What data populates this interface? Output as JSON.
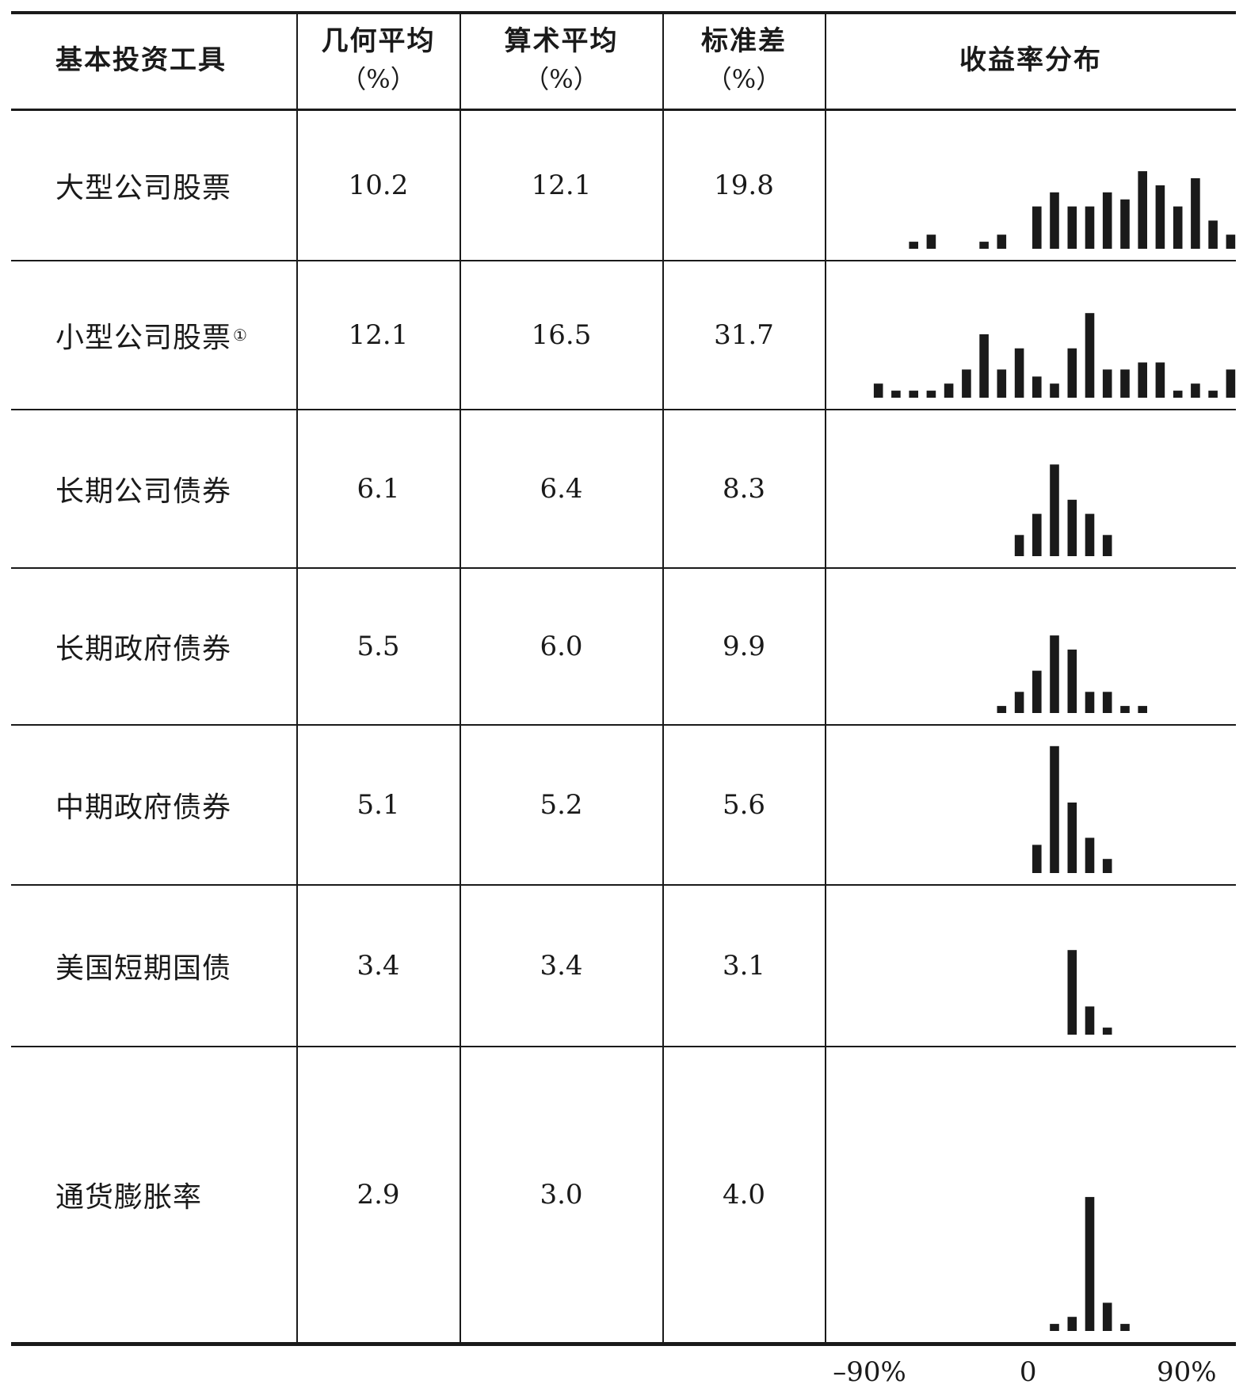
{
  "headers": {
    "instrument": "基本投资工具",
    "geo": "几何平均",
    "arith": "算术平均",
    "std": "标准差",
    "unit": "（%）",
    "dist": "收益率分布"
  },
  "rows": [
    {
      "name": "大型公司股票",
      "note": "",
      "geo": "10.2",
      "arith": "12.1",
      "std": "19.8"
    },
    {
      "name": "小型公司股票",
      "note": "①",
      "geo": "12.1",
      "arith": "16.5",
      "std": "31.7"
    },
    {
      "name": "长期公司债券",
      "note": "",
      "geo": "6.1",
      "arith": "6.4",
      "std": "8.3"
    },
    {
      "name": "长期政府债券",
      "note": "",
      "geo": "5.5",
      "arith": "6.0",
      "std": "9.9"
    },
    {
      "name": "中期政府债券",
      "note": "",
      "geo": "5.1",
      "arith": "5.2",
      "std": "5.6"
    },
    {
      "name": "美国短期国债",
      "note": "",
      "geo": "3.4",
      "arith": "3.4",
      "std": "3.1"
    },
    {
      "name": "通货膨胀率",
      "note": "",
      "geo": "2.9",
      "arith": "3.0",
      "std": "4.0"
    }
  ],
  "chart_data": {
    "type": "bar",
    "title": "收益率分布",
    "x": [
      -85,
      -75,
      -65,
      -55,
      -45,
      -35,
      -25,
      -15,
      -5,
      5,
      15,
      25,
      35,
      45,
      55,
      65,
      75,
      85,
      95,
      105,
      115
    ],
    "xlabel": "",
    "ylabel": "",
    "xlim": [
      -115,
      118
    ],
    "x_tick_labels": [
      "–90%",
      "0",
      "90%"
    ],
    "x_ticks": [
      -90,
      0,
      90
    ],
    "series": [
      {
        "name": "大型公司股票",
        "values": [
          0,
          0,
          1,
          2,
          0,
          0,
          1,
          2,
          0,
          6,
          8,
          6,
          6,
          8,
          7,
          11,
          9,
          6,
          10,
          4,
          2
        ]
      },
      {
        "name": "小型公司股票",
        "values": [
          2,
          1,
          1,
          1,
          2,
          4,
          9,
          4,
          7,
          3,
          2,
          7,
          12,
          4,
          4,
          5,
          5,
          1,
          2,
          1,
          4
        ]
      },
      {
        "name": "长期公司债券",
        "values": [
          0,
          0,
          0,
          0,
          0,
          0,
          0,
          0,
          3,
          6,
          13,
          8,
          6,
          3,
          0,
          0,
          0,
          0,
          0,
          0,
          0
        ]
      },
      {
        "name": "长期政府债券",
        "values": [
          0,
          0,
          0,
          0,
          0,
          0,
          0,
          1,
          3,
          6,
          11,
          9,
          3,
          3,
          1,
          1,
          0,
          0,
          0,
          0,
          0
        ]
      },
      {
        "name": "中期政府债券",
        "values": [
          0,
          0,
          0,
          0,
          0,
          0,
          0,
          0,
          0,
          4,
          18,
          10,
          5,
          2,
          0,
          0,
          0,
          0,
          0,
          0,
          0
        ]
      },
      {
        "name": "美国短期国债",
        "values": [
          0,
          0,
          0,
          0,
          0,
          0,
          0,
          0,
          0,
          0,
          0,
          12,
          4,
          1,
          0,
          0,
          0,
          0,
          0,
          0,
          0
        ]
      },
      {
        "name": "通货膨胀率",
        "values": [
          0,
          0,
          0,
          0,
          0,
          0,
          0,
          0,
          0,
          0,
          1,
          2,
          19,
          4,
          1,
          0,
          0,
          0,
          0,
          0,
          0
        ]
      }
    ]
  }
}
